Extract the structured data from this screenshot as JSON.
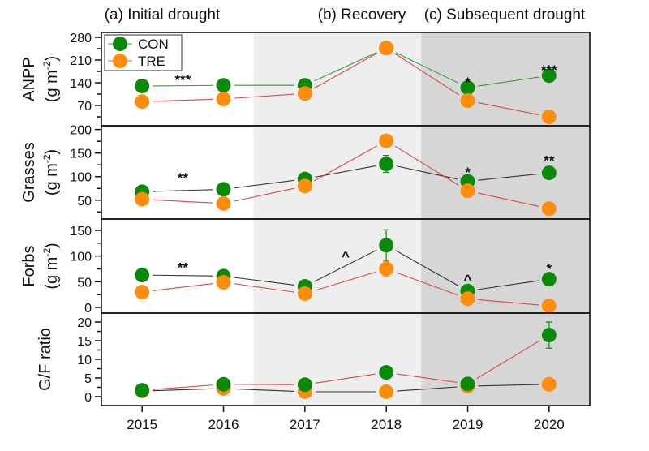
{
  "chart_data": {
    "type": "line",
    "title": "",
    "x": [
      2015,
      2016,
      2017,
      2018,
      2019,
      2020
    ],
    "xlabel": "",
    "periods": [
      {
        "label": "(a) Initial drought",
        "from": 2014.5,
        "to": 2016.37,
        "shade": "#ffffff"
      },
      {
        "label": "(b) Recovery",
        "from": 2016.37,
        "to": 2018.43,
        "shade": "#eeeeee"
      },
      {
        "label": "(c) Subsequent drought",
        "from": 2018.43,
        "to": 2020.5,
        "shade": "#d6d6d6"
      }
    ],
    "legend": {
      "placement": "top-left",
      "entries": [
        {
          "name": "CON",
          "color": "#0a8a0a",
          "line": "#3a9a3a"
        },
        {
          "name": "TRE",
          "color": "#ff8c0a",
          "line": "#d44a4a"
        }
      ]
    },
    "panels": [
      {
        "id": "anpp",
        "ylabel": "ANPP",
        "yunit": "(g m-2)",
        "ylim": [
          7.5,
          295
        ],
        "yticks": [
          70,
          140,
          210,
          280
        ],
        "con_line": "#3a9a3a",
        "tre_line": "#d44a4a",
        "series": [
          {
            "name": "CON",
            "values": [
              130,
              132,
              132,
              247,
              125,
              162
            ],
            "err": [
              0,
              0,
              0,
              0,
              0,
              0
            ]
          },
          {
            "name": "TRE",
            "values": [
              82,
              90,
              107,
              247,
              85,
              35
            ],
            "err": [
              0,
              0,
              0,
              0,
              0,
              0
            ]
          }
        ],
        "annotations": [
          {
            "x": 2015.5,
            "text": "***",
            "y": 150
          },
          {
            "x": 2019,
            "text": "*",
            "y": 143
          },
          {
            "x": 2020,
            "text": "***",
            "y": 180
          }
        ]
      },
      {
        "id": "grasses",
        "ylabel": "Grasses",
        "yunit": "(g m-2)",
        "ylim": [
          10,
          208
        ],
        "yticks": [
          50,
          100,
          150,
          200
        ],
        "con_line": "#333333",
        "tre_line": "#d44a4a",
        "series": [
          {
            "name": "CON",
            "values": [
              68,
              73,
              95,
              127,
              90,
              108
            ],
            "err": [
              0,
              0,
              0,
              18,
              0,
              0
            ]
          },
          {
            "name": "TRE",
            "values": [
              52,
              43,
              80,
              176,
              70,
              32
            ],
            "err": [
              0,
              0,
              0,
              12,
              0,
              0
            ]
          }
        ],
        "annotations": [
          {
            "x": 2015.5,
            "text": "**",
            "y": 98
          },
          {
            "x": 2019,
            "text": "*",
            "y": 110
          },
          {
            "x": 2020,
            "text": "**",
            "y": 135
          }
        ]
      },
      {
        "id": "forbs",
        "ylabel": "Forbs",
        "yunit": "(g m-2)",
        "ylim": [
          -11,
          172
        ],
        "yticks": [
          0,
          50,
          100,
          150
        ],
        "con_line": "#333333",
        "tre_line": "#d44a4a",
        "series": [
          {
            "name": "CON",
            "values": [
              63,
              61,
              41,
              121,
              32,
              55
            ],
            "err": [
              0,
              0,
              0,
              30,
              0,
              12
            ]
          },
          {
            "name": "TRE",
            "values": [
              30,
              49,
              27,
              75,
              17,
              3
            ],
            "err": [
              0,
              0,
              0,
              15,
              0,
              0
            ]
          }
        ],
        "annotations": [
          {
            "x": 2015.5,
            "text": "**",
            "y": 78
          },
          {
            "x": 2017.5,
            "text": "^",
            "y": 100
          },
          {
            "x": 2019,
            "text": "^",
            "y": 55
          },
          {
            "x": 2020,
            "text": "*",
            "y": 76
          }
        ]
      },
      {
        "id": "gf_ratio",
        "ylabel": "G/F ratio",
        "yunit": "",
        "ylim": [
          -2.4,
          22.4
        ],
        "yticks": [
          0,
          5,
          10,
          15,
          20
        ],
        "con_line": "#d44a4a",
        "tre_line": "#333333",
        "series": [
          {
            "name": "CON",
            "values": [
              1.7,
              3.3,
              3.2,
              6.5,
              3.4,
              16.5
            ],
            "err": [
              0,
              0,
              0,
              0,
              0,
              3.5
            ]
          },
          {
            "name": "TRE",
            "values": [
              1.5,
              2.2,
              1.3,
              1.3,
              2.8,
              3.3
            ],
            "err": [
              0,
              0,
              0,
              0,
              0,
              0
            ]
          }
        ],
        "annotations": []
      }
    ]
  }
}
